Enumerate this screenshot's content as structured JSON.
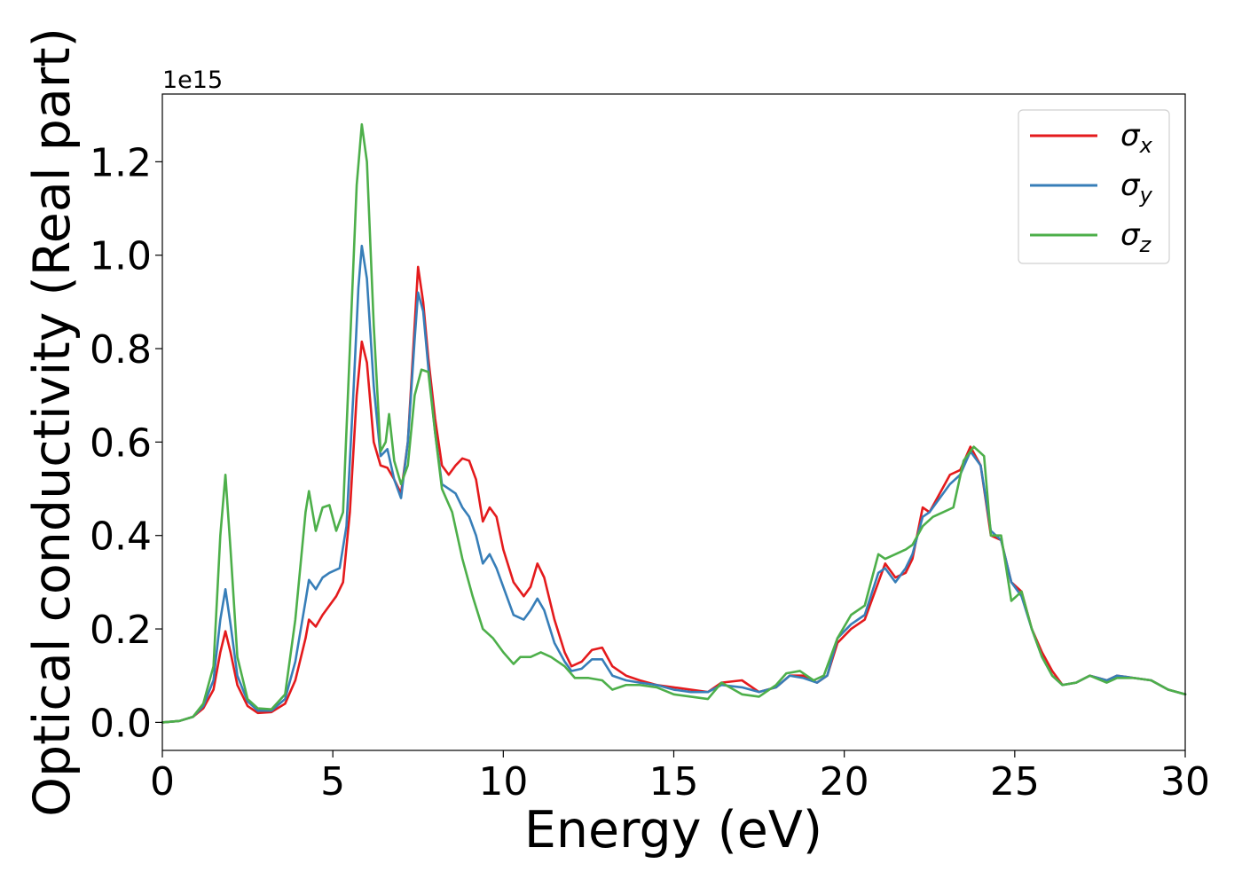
{
  "chart_data": {
    "type": "line",
    "xlabel": "Energy (eV)",
    "ylabel": "Optical conductivity (Real part)",
    "y_offset_label": "1e15",
    "xlim": [
      0,
      30
    ],
    "ylim": [
      -0.06,
      1.345
    ],
    "xticks": [
      0,
      5,
      10,
      15,
      20,
      25,
      30
    ],
    "xtick_labels": [
      "0",
      "5",
      "10",
      "15",
      "20",
      "25",
      "30"
    ],
    "yticks": [
      0.0,
      0.2,
      0.4,
      0.6,
      0.8,
      1.0,
      1.2
    ],
    "ytick_labels": [
      "0.0",
      "0.2",
      "0.4",
      "0.6",
      "0.8",
      "1.0",
      "1.2"
    ],
    "grid": false,
    "legend_position": "top-right",
    "series": [
      {
        "name": "σ_x",
        "symbol": "σ",
        "subscript": "x",
        "color": "#e41a1c",
        "points": [
          [
            0,
            0.0
          ],
          [
            0.5,
            0.003
          ],
          [
            0.9,
            0.012
          ],
          [
            1.2,
            0.03
          ],
          [
            1.5,
            0.07
          ],
          [
            1.7,
            0.15
          ],
          [
            1.85,
            0.195
          ],
          [
            2.0,
            0.15
          ],
          [
            2.2,
            0.08
          ],
          [
            2.5,
            0.035
          ],
          [
            2.8,
            0.02
          ],
          [
            3.2,
            0.022
          ],
          [
            3.6,
            0.04
          ],
          [
            3.9,
            0.09
          ],
          [
            4.2,
            0.18
          ],
          [
            4.3,
            0.22
          ],
          [
            4.5,
            0.205
          ],
          [
            4.7,
            0.23
          ],
          [
            4.9,
            0.25
          ],
          [
            5.1,
            0.27
          ],
          [
            5.3,
            0.3
          ],
          [
            5.5,
            0.45
          ],
          [
            5.7,
            0.7
          ],
          [
            5.85,
            0.815
          ],
          [
            6.0,
            0.77
          ],
          [
            6.2,
            0.6
          ],
          [
            6.4,
            0.55
          ],
          [
            6.6,
            0.545
          ],
          [
            6.8,
            0.52
          ],
          [
            7.0,
            0.49
          ],
          [
            7.2,
            0.6
          ],
          [
            7.4,
            0.85
          ],
          [
            7.5,
            0.975
          ],
          [
            7.65,
            0.9
          ],
          [
            7.8,
            0.78
          ],
          [
            8.0,
            0.65
          ],
          [
            8.2,
            0.55
          ],
          [
            8.4,
            0.53
          ],
          [
            8.6,
            0.55
          ],
          [
            8.8,
            0.565
          ],
          [
            9.0,
            0.56
          ],
          [
            9.2,
            0.52
          ],
          [
            9.4,
            0.43
          ],
          [
            9.6,
            0.46
          ],
          [
            9.8,
            0.44
          ],
          [
            10.0,
            0.37
          ],
          [
            10.3,
            0.3
          ],
          [
            10.6,
            0.27
          ],
          [
            10.8,
            0.29
          ],
          [
            11.0,
            0.34
          ],
          [
            11.2,
            0.31
          ],
          [
            11.5,
            0.22
          ],
          [
            11.8,
            0.15
          ],
          [
            12.0,
            0.12
          ],
          [
            12.3,
            0.13
          ],
          [
            12.6,
            0.155
          ],
          [
            12.9,
            0.16
          ],
          [
            13.2,
            0.12
          ],
          [
            13.6,
            0.1
          ],
          [
            14.0,
            0.09
          ],
          [
            14.5,
            0.08
          ],
          [
            15.0,
            0.075
          ],
          [
            15.5,
            0.07
          ],
          [
            16.0,
            0.065
          ],
          [
            16.4,
            0.085
          ],
          [
            17.0,
            0.09
          ],
          [
            17.5,
            0.065
          ],
          [
            18.0,
            0.075
          ],
          [
            18.4,
            0.1
          ],
          [
            18.8,
            0.1
          ],
          [
            19.2,
            0.085
          ],
          [
            19.5,
            0.1
          ],
          [
            19.8,
            0.17
          ],
          [
            20.2,
            0.2
          ],
          [
            20.6,
            0.22
          ],
          [
            21.0,
            0.3
          ],
          [
            21.2,
            0.34
          ],
          [
            21.5,
            0.31
          ],
          [
            21.8,
            0.32
          ],
          [
            22.0,
            0.35
          ],
          [
            22.3,
            0.46
          ],
          [
            22.5,
            0.45
          ],
          [
            22.8,
            0.49
          ],
          [
            23.1,
            0.53
          ],
          [
            23.4,
            0.54
          ],
          [
            23.7,
            0.59
          ],
          [
            24.0,
            0.55
          ],
          [
            24.3,
            0.4
          ],
          [
            24.6,
            0.39
          ],
          [
            24.9,
            0.3
          ],
          [
            25.2,
            0.28
          ],
          [
            25.5,
            0.2
          ],
          [
            25.8,
            0.15
          ],
          [
            26.1,
            0.11
          ],
          [
            26.4,
            0.08
          ],
          [
            26.8,
            0.085
          ],
          [
            27.2,
            0.1
          ],
          [
            27.7,
            0.09
          ],
          [
            28.0,
            0.1
          ],
          [
            28.5,
            0.095
          ],
          [
            29.0,
            0.09
          ],
          [
            29.5,
            0.07
          ],
          [
            30.0,
            0.06
          ]
        ]
      },
      {
        "name": "σ_y",
        "symbol": "σ",
        "subscript": "y",
        "color": "#377eb8",
        "points": [
          [
            0,
            0.0
          ],
          [
            0.5,
            0.003
          ],
          [
            0.9,
            0.012
          ],
          [
            1.2,
            0.035
          ],
          [
            1.5,
            0.09
          ],
          [
            1.7,
            0.22
          ],
          [
            1.85,
            0.285
          ],
          [
            2.0,
            0.21
          ],
          [
            2.2,
            0.1
          ],
          [
            2.5,
            0.045
          ],
          [
            2.8,
            0.025
          ],
          [
            3.2,
            0.025
          ],
          [
            3.6,
            0.05
          ],
          [
            3.9,
            0.13
          ],
          [
            4.2,
            0.26
          ],
          [
            4.3,
            0.305
          ],
          [
            4.5,
            0.285
          ],
          [
            4.7,
            0.31
          ],
          [
            4.9,
            0.32
          ],
          [
            5.2,
            0.33
          ],
          [
            5.4,
            0.42
          ],
          [
            5.6,
            0.7
          ],
          [
            5.75,
            0.93
          ],
          [
            5.85,
            1.02
          ],
          [
            6.0,
            0.95
          ],
          [
            6.2,
            0.72
          ],
          [
            6.4,
            0.57
          ],
          [
            6.6,
            0.585
          ],
          [
            6.8,
            0.52
          ],
          [
            7.0,
            0.48
          ],
          [
            7.2,
            0.6
          ],
          [
            7.4,
            0.82
          ],
          [
            7.5,
            0.92
          ],
          [
            7.65,
            0.88
          ],
          [
            7.8,
            0.76
          ],
          [
            8.0,
            0.62
          ],
          [
            8.2,
            0.51
          ],
          [
            8.4,
            0.5
          ],
          [
            8.6,
            0.49
          ],
          [
            8.8,
            0.46
          ],
          [
            9.0,
            0.44
          ],
          [
            9.2,
            0.4
          ],
          [
            9.4,
            0.34
          ],
          [
            9.6,
            0.36
          ],
          [
            9.8,
            0.33
          ],
          [
            10.0,
            0.29
          ],
          [
            10.3,
            0.23
          ],
          [
            10.6,
            0.22
          ],
          [
            10.8,
            0.24
          ],
          [
            11.0,
            0.265
          ],
          [
            11.2,
            0.24
          ],
          [
            11.5,
            0.17
          ],
          [
            11.8,
            0.13
          ],
          [
            12.0,
            0.11
          ],
          [
            12.3,
            0.115
          ],
          [
            12.6,
            0.135
          ],
          [
            12.9,
            0.135
          ],
          [
            13.2,
            0.1
          ],
          [
            13.6,
            0.09
          ],
          [
            14.0,
            0.085
          ],
          [
            14.5,
            0.08
          ],
          [
            15.0,
            0.07
          ],
          [
            15.5,
            0.065
          ],
          [
            16.0,
            0.065
          ],
          [
            16.4,
            0.08
          ],
          [
            17.0,
            0.075
          ],
          [
            17.5,
            0.065
          ],
          [
            18.0,
            0.075
          ],
          [
            18.4,
            0.1
          ],
          [
            18.8,
            0.095
          ],
          [
            19.2,
            0.085
          ],
          [
            19.5,
            0.1
          ],
          [
            19.8,
            0.18
          ],
          [
            20.2,
            0.21
          ],
          [
            20.6,
            0.23
          ],
          [
            21.0,
            0.32
          ],
          [
            21.2,
            0.33
          ],
          [
            21.5,
            0.3
          ],
          [
            21.8,
            0.33
          ],
          [
            22.0,
            0.36
          ],
          [
            22.3,
            0.44
          ],
          [
            22.5,
            0.45
          ],
          [
            22.8,
            0.48
          ],
          [
            23.1,
            0.51
          ],
          [
            23.4,
            0.53
          ],
          [
            23.7,
            0.58
          ],
          [
            24.0,
            0.55
          ],
          [
            24.3,
            0.41
          ],
          [
            24.6,
            0.39
          ],
          [
            24.9,
            0.3
          ],
          [
            25.2,
            0.27
          ],
          [
            25.5,
            0.2
          ],
          [
            25.8,
            0.14
          ],
          [
            26.1,
            0.1
          ],
          [
            26.4,
            0.08
          ],
          [
            26.8,
            0.085
          ],
          [
            27.2,
            0.1
          ],
          [
            27.7,
            0.09
          ],
          [
            28.0,
            0.1
          ],
          [
            28.5,
            0.095
          ],
          [
            29.0,
            0.09
          ],
          [
            29.5,
            0.07
          ],
          [
            30.0,
            0.06
          ]
        ]
      },
      {
        "name": "σ_z",
        "symbol": "σ",
        "subscript": "z",
        "color": "#4daf4a",
        "points": [
          [
            0,
            0.0
          ],
          [
            0.5,
            0.003
          ],
          [
            0.9,
            0.012
          ],
          [
            1.2,
            0.04
          ],
          [
            1.5,
            0.12
          ],
          [
            1.7,
            0.4
          ],
          [
            1.85,
            0.53
          ],
          [
            2.0,
            0.37
          ],
          [
            2.2,
            0.14
          ],
          [
            2.5,
            0.05
          ],
          [
            2.8,
            0.03
          ],
          [
            3.2,
            0.028
          ],
          [
            3.6,
            0.06
          ],
          [
            3.9,
            0.22
          ],
          [
            4.2,
            0.45
          ],
          [
            4.3,
            0.495
          ],
          [
            4.5,
            0.41
          ],
          [
            4.7,
            0.46
          ],
          [
            4.9,
            0.465
          ],
          [
            5.1,
            0.41
          ],
          [
            5.3,
            0.45
          ],
          [
            5.5,
            0.8
          ],
          [
            5.7,
            1.15
          ],
          [
            5.85,
            1.28
          ],
          [
            6.0,
            1.2
          ],
          [
            6.2,
            0.85
          ],
          [
            6.4,
            0.58
          ],
          [
            6.55,
            0.6
          ],
          [
            6.65,
            0.66
          ],
          [
            6.8,
            0.56
          ],
          [
            7.0,
            0.51
          ],
          [
            7.2,
            0.55
          ],
          [
            7.4,
            0.7
          ],
          [
            7.6,
            0.755
          ],
          [
            7.8,
            0.75
          ],
          [
            8.0,
            0.62
          ],
          [
            8.2,
            0.5
          ],
          [
            8.5,
            0.45
          ],
          [
            8.8,
            0.35
          ],
          [
            9.1,
            0.27
          ],
          [
            9.4,
            0.2
          ],
          [
            9.7,
            0.18
          ],
          [
            10.0,
            0.15
          ],
          [
            10.3,
            0.125
          ],
          [
            10.5,
            0.14
          ],
          [
            10.8,
            0.14
          ],
          [
            11.1,
            0.15
          ],
          [
            11.4,
            0.14
          ],
          [
            11.8,
            0.12
          ],
          [
            12.1,
            0.095
          ],
          [
            12.5,
            0.095
          ],
          [
            12.9,
            0.09
          ],
          [
            13.2,
            0.07
          ],
          [
            13.6,
            0.08
          ],
          [
            14.0,
            0.08
          ],
          [
            14.5,
            0.075
          ],
          [
            15.0,
            0.06
          ],
          [
            15.5,
            0.055
          ],
          [
            16.0,
            0.05
          ],
          [
            16.4,
            0.085
          ],
          [
            17.0,
            0.06
          ],
          [
            17.5,
            0.055
          ],
          [
            18.0,
            0.08
          ],
          [
            18.3,
            0.105
          ],
          [
            18.7,
            0.11
          ],
          [
            19.1,
            0.09
          ],
          [
            19.4,
            0.1
          ],
          [
            19.8,
            0.18
          ],
          [
            20.2,
            0.23
          ],
          [
            20.6,
            0.25
          ],
          [
            21.0,
            0.36
          ],
          [
            21.2,
            0.35
          ],
          [
            21.5,
            0.36
          ],
          [
            21.8,
            0.37
          ],
          [
            22.0,
            0.38
          ],
          [
            22.3,
            0.42
          ],
          [
            22.6,
            0.44
          ],
          [
            22.9,
            0.45
          ],
          [
            23.2,
            0.46
          ],
          [
            23.5,
            0.56
          ],
          [
            23.8,
            0.59
          ],
          [
            24.1,
            0.57
          ],
          [
            24.3,
            0.4
          ],
          [
            24.6,
            0.4
          ],
          [
            24.9,
            0.26
          ],
          [
            25.2,
            0.28
          ],
          [
            25.5,
            0.2
          ],
          [
            25.8,
            0.14
          ],
          [
            26.1,
            0.1
          ],
          [
            26.4,
            0.08
          ],
          [
            26.8,
            0.085
          ],
          [
            27.2,
            0.1
          ],
          [
            27.7,
            0.085
          ],
          [
            28.0,
            0.095
          ],
          [
            28.5,
            0.095
          ],
          [
            29.0,
            0.09
          ],
          [
            29.5,
            0.07
          ],
          [
            30.0,
            0.06
          ]
        ]
      }
    ]
  }
}
